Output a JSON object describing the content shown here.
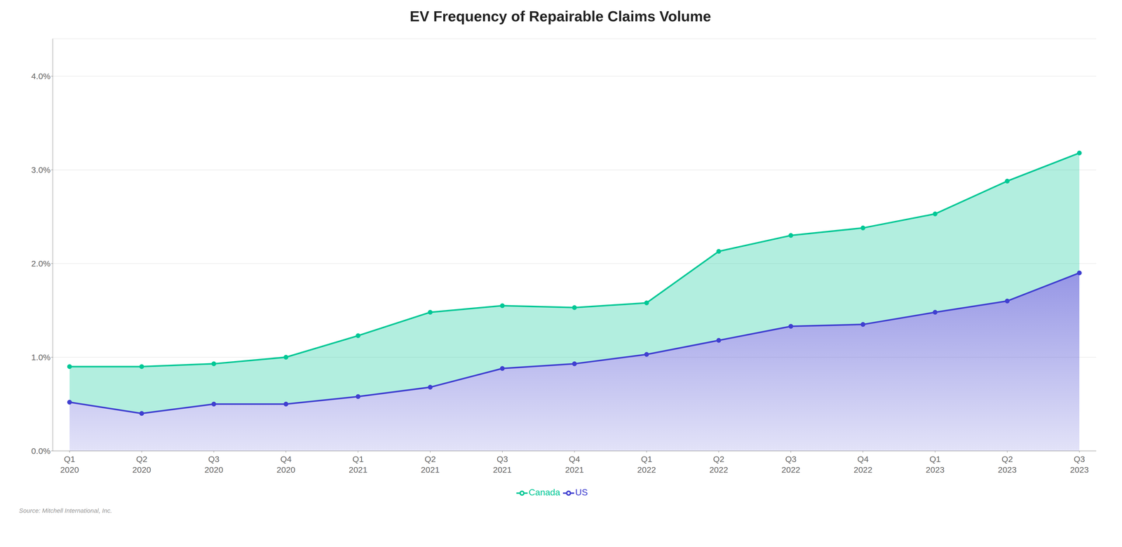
{
  "chart_data": {
    "type": "line",
    "title": "EV Frequency of Repairable Claims Volume",
    "source": "Source: Mitchell International, Inc.",
    "categories": [
      "Q1\n2020",
      "Q2\n2020",
      "Q3\n2020",
      "Q4\n2020",
      "Q1\n2021",
      "Q2\n2021",
      "Q3\n2021",
      "Q4\n2021",
      "Q1\n2022",
      "Q2\n2022",
      "Q3\n2022",
      "Q4\n2022",
      "Q1\n2023",
      "Q2\n2023",
      "Q3\n2023"
    ],
    "series": [
      {
        "name": "US",
        "color": "#4040d0",
        "marker": "circle",
        "values": [
          0.0052,
          0.004,
          0.005,
          0.005,
          0.0058,
          0.0068,
          0.0088,
          0.0093,
          0.0103,
          0.0118,
          0.0133,
          0.0135,
          0.0148,
          0.016,
          0.019
        ]
      },
      {
        "name": "Canada",
        "color": "#00c896",
        "marker": "circle",
        "values": [
          0.009,
          0.009,
          0.0093,
          0.01,
          0.0123,
          0.0148,
          0.0155,
          0.0153,
          0.0158,
          0.0213,
          0.023,
          0.0238,
          0.0253,
          0.0288,
          0.0318
        ]
      }
    ],
    "ylim": [
      0,
      0.044
    ],
    "yticks": [
      {
        "value": 0.0,
        "label": "0.0%"
      },
      {
        "value": 0.01,
        "label": "1.0%"
      },
      {
        "value": 0.02,
        "label": "2.0%"
      },
      {
        "value": 0.03,
        "label": "3.0%"
      },
      {
        "value": 0.04,
        "label": "4.0%"
      }
    ],
    "grid": true,
    "legend": "bottom"
  }
}
